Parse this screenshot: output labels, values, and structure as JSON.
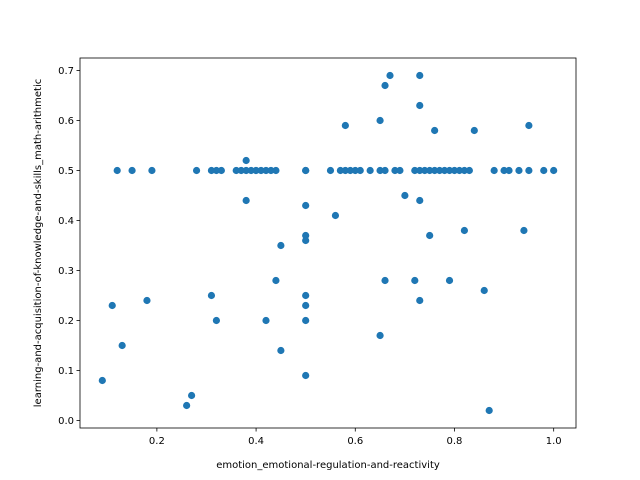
{
  "chart_data": {
    "type": "scatter",
    "title": "",
    "xlabel": "emotion_emotional-regulation-and-reactivity",
    "ylabel": "learning-and-acquisition-of-knowledge-and-skills_math-arithmetic",
    "xlim": [
      0.045,
      1.045
    ],
    "ylim": [
      -0.015,
      0.725
    ],
    "xticks": [
      0.2,
      0.4,
      0.6,
      0.8,
      1.0
    ],
    "xtick_labels": [
      "0.2",
      "0.4",
      "0.6",
      "0.8",
      "1.0"
    ],
    "yticks": [
      0.0,
      0.1,
      0.2,
      0.3,
      0.4,
      0.5,
      0.6,
      0.7
    ],
    "ytick_labels": [
      "0.0",
      "0.1",
      "0.2",
      "0.3",
      "0.4",
      "0.5",
      "0.6",
      "0.7"
    ],
    "grid": false,
    "legend": "none",
    "marker_color": "#1f77b4",
    "points": [
      {
        "x": 0.09,
        "y": 0.08
      },
      {
        "x": 0.11,
        "y": 0.23
      },
      {
        "x": 0.12,
        "y": 0.5
      },
      {
        "x": 0.13,
        "y": 0.15
      },
      {
        "x": 0.15,
        "y": 0.5
      },
      {
        "x": 0.18,
        "y": 0.24
      },
      {
        "x": 0.19,
        "y": 0.5
      },
      {
        "x": 0.26,
        "y": 0.03
      },
      {
        "x": 0.27,
        "y": 0.05
      },
      {
        "x": 0.28,
        "y": 0.5
      },
      {
        "x": 0.31,
        "y": 0.25
      },
      {
        "x": 0.31,
        "y": 0.5
      },
      {
        "x": 0.32,
        "y": 0.2
      },
      {
        "x": 0.32,
        "y": 0.5
      },
      {
        "x": 0.33,
        "y": 0.5
      },
      {
        "x": 0.36,
        "y": 0.5
      },
      {
        "x": 0.37,
        "y": 0.5
      },
      {
        "x": 0.38,
        "y": 0.52
      },
      {
        "x": 0.38,
        "y": 0.44
      },
      {
        "x": 0.38,
        "y": 0.5
      },
      {
        "x": 0.39,
        "y": 0.5
      },
      {
        "x": 0.4,
        "y": 0.5
      },
      {
        "x": 0.41,
        "y": 0.5
      },
      {
        "x": 0.42,
        "y": 0.2
      },
      {
        "x": 0.42,
        "y": 0.5
      },
      {
        "x": 0.43,
        "y": 0.5
      },
      {
        "x": 0.44,
        "y": 0.28
      },
      {
        "x": 0.44,
        "y": 0.5
      },
      {
        "x": 0.45,
        "y": 0.35
      },
      {
        "x": 0.45,
        "y": 0.14
      },
      {
        "x": 0.5,
        "y": 0.5
      },
      {
        "x": 0.5,
        "y": 0.43
      },
      {
        "x": 0.5,
        "y": 0.37
      },
      {
        "x": 0.5,
        "y": 0.36
      },
      {
        "x": 0.5,
        "y": 0.25
      },
      {
        "x": 0.5,
        "y": 0.23
      },
      {
        "x": 0.5,
        "y": 0.2
      },
      {
        "x": 0.5,
        "y": 0.09
      },
      {
        "x": 0.5,
        "y": 0.5
      },
      {
        "x": 0.55,
        "y": 0.5
      },
      {
        "x": 0.56,
        "y": 0.41
      },
      {
        "x": 0.57,
        "y": 0.5
      },
      {
        "x": 0.58,
        "y": 0.59
      },
      {
        "x": 0.58,
        "y": 0.5
      },
      {
        "x": 0.59,
        "y": 0.5
      },
      {
        "x": 0.6,
        "y": 0.5
      },
      {
        "x": 0.61,
        "y": 0.5
      },
      {
        "x": 0.63,
        "y": 0.5
      },
      {
        "x": 0.65,
        "y": 0.6
      },
      {
        "x": 0.65,
        "y": 0.5
      },
      {
        "x": 0.65,
        "y": 0.17
      },
      {
        "x": 0.66,
        "y": 0.67
      },
      {
        "x": 0.66,
        "y": 0.5
      },
      {
        "x": 0.66,
        "y": 0.28
      },
      {
        "x": 0.67,
        "y": 0.69
      },
      {
        "x": 0.68,
        "y": 0.5
      },
      {
        "x": 0.69,
        "y": 0.5
      },
      {
        "x": 0.7,
        "y": 0.45
      },
      {
        "x": 0.72,
        "y": 0.5
      },
      {
        "x": 0.72,
        "y": 0.28
      },
      {
        "x": 0.73,
        "y": 0.69
      },
      {
        "x": 0.73,
        "y": 0.63
      },
      {
        "x": 0.73,
        "y": 0.5
      },
      {
        "x": 0.73,
        "y": 0.44
      },
      {
        "x": 0.73,
        "y": 0.24
      },
      {
        "x": 0.74,
        "y": 0.5
      },
      {
        "x": 0.75,
        "y": 0.5
      },
      {
        "x": 0.75,
        "y": 0.37
      },
      {
        "x": 0.76,
        "y": 0.58
      },
      {
        "x": 0.76,
        "y": 0.5
      },
      {
        "x": 0.77,
        "y": 0.5
      },
      {
        "x": 0.78,
        "y": 0.5
      },
      {
        "x": 0.79,
        "y": 0.5
      },
      {
        "x": 0.79,
        "y": 0.28
      },
      {
        "x": 0.8,
        "y": 0.5
      },
      {
        "x": 0.81,
        "y": 0.5
      },
      {
        "x": 0.82,
        "y": 0.5
      },
      {
        "x": 0.82,
        "y": 0.38
      },
      {
        "x": 0.83,
        "y": 0.5
      },
      {
        "x": 0.84,
        "y": 0.58
      },
      {
        "x": 0.86,
        "y": 0.26
      },
      {
        "x": 0.87,
        "y": 0.02
      },
      {
        "x": 0.88,
        "y": 0.5
      },
      {
        "x": 0.9,
        "y": 0.5
      },
      {
        "x": 0.91,
        "y": 0.5
      },
      {
        "x": 0.93,
        "y": 0.5
      },
      {
        "x": 0.94,
        "y": 0.38
      },
      {
        "x": 0.95,
        "y": 0.59
      },
      {
        "x": 0.95,
        "y": 0.5
      },
      {
        "x": 0.98,
        "y": 0.5
      },
      {
        "x": 1.0,
        "y": 0.5
      }
    ]
  }
}
